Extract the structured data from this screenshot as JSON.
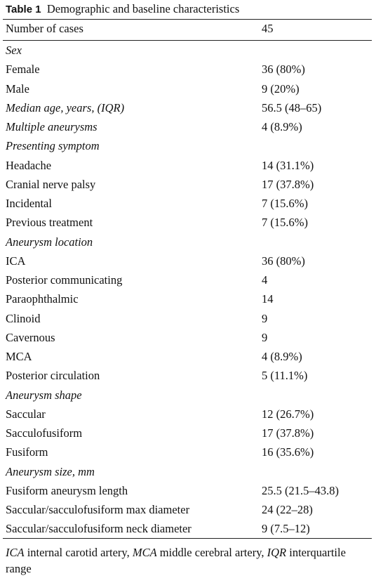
{
  "table": {
    "label": "Table 1",
    "caption": "Demographic and baseline characteristics",
    "header": [
      "Number of cases",
      "45"
    ],
    "rows": [
      {
        "label": "Sex",
        "value": null,
        "italic": true
      },
      {
        "label": "Female",
        "value": "36 (80%)",
        "italic": false
      },
      {
        "label": "Male",
        "value": "9 (20%)",
        "italic": false
      },
      {
        "label": "Median age, years, (IQR)",
        "value": "56.5 (48–65)",
        "italic": true
      },
      {
        "label": "Multiple aneurysms",
        "value": "4 (8.9%)",
        "italic": true
      },
      {
        "label": "Presenting symptom",
        "value": null,
        "italic": true
      },
      {
        "label": "Headache",
        "value": "14 (31.1%)",
        "italic": false
      },
      {
        "label": "Cranial nerve palsy",
        "value": "17 (37.8%)",
        "italic": false
      },
      {
        "label": "Incidental",
        "value": "7 (15.6%)",
        "italic": false
      },
      {
        "label": "Previous treatment",
        "value": "7 (15.6%)",
        "italic": false
      },
      {
        "label": "Aneurysm location",
        "value": null,
        "italic": true
      },
      {
        "label": "ICA",
        "value": "36 (80%)",
        "italic": false
      },
      {
        "label": "Posterior communicating",
        "value": "4",
        "italic": false
      },
      {
        "label": "Paraophthalmic",
        "value": "14",
        "italic": false
      },
      {
        "label": "Clinoid",
        "value": "9",
        "italic": false
      },
      {
        "label": "Cavernous",
        "value": "9",
        "italic": false
      },
      {
        "label": "MCA",
        "value": "4 (8.9%)",
        "italic": false
      },
      {
        "label": "Posterior circulation",
        "value": "5 (11.1%)",
        "italic": false
      },
      {
        "label": "Aneurysm shape",
        "value": null,
        "italic": true
      },
      {
        "label": "Saccular",
        "value": "12 (26.7%)",
        "italic": false
      },
      {
        "label": "Sacculofusiform",
        "value": "17 (37.8%)",
        "italic": false
      },
      {
        "label": "Fusiform",
        "value": "16 (35.6%)",
        "italic": false
      },
      {
        "label": "Aneurysm size, mm",
        "value": null,
        "italic": true
      },
      {
        "label": "Fusiform aneurysm length",
        "value": "25.5 (21.5–43.8)",
        "italic": false
      },
      {
        "label": "Saccular/sacculofusiform max diameter",
        "value": "24 (22–28)",
        "italic": false
      },
      {
        "label": "Saccular/sacculofusiform neck diameter",
        "value": "9 (7.5–12)",
        "italic": false
      }
    ],
    "footnote": [
      {
        "abbr": "ICA",
        "text": " internal carotid artery, "
      },
      {
        "abbr": "MCA",
        "text": " middle cerebral artery, "
      },
      {
        "abbr": "IQR",
        "text": " interquartile range"
      }
    ]
  }
}
